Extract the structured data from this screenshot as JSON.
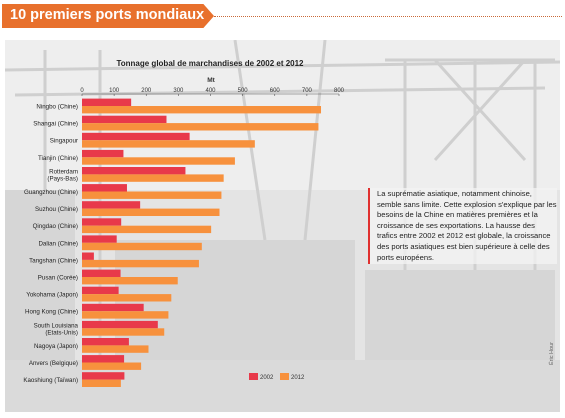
{
  "header": {
    "title": "10 premiers ports mondiaux"
  },
  "chart_data": {
    "type": "bar",
    "orientation": "horizontal",
    "title": "Tonnage global de marchandises de 2002 et 2012",
    "xlabel": "Mt",
    "ylabel": "",
    "xlim": [
      0,
      800
    ],
    "xticks": [
      0,
      100,
      200,
      300,
      400,
      500,
      600,
      700,
      800
    ],
    "categories": [
      "Ningbo (Chine)",
      "Shangai (Chine)",
      "Singapour",
      "Tianjin (Chine)",
      "Rotterdam (Pays-Bas)",
      "Guangzhou (Chine)",
      "Suzhou (Chine)",
      "Qingdao (Chine)",
      "Dalian (Chine)",
      "Tangshan (Chine)",
      "Pusan (Corée)",
      "Yokohama (Japon)",
      "Hong Kong (Chine)",
      "South Louisiana (Etats-Unis)",
      "Nagoya (Japon)",
      "Anvers (Belgique)",
      "Kaoshiung (Taïwan)"
    ],
    "series": [
      {
        "name": "2002",
        "color": "#e8394a",
        "values": [
          153,
          263,
          335,
          129,
          322,
          140,
          181,
          122,
          108,
          37,
          120,
          114,
          192,
          236,
          146,
          131,
          132
        ]
      },
      {
        "name": "2012",
        "color": "#f7913d",
        "values": [
          744,
          736,
          538,
          476,
          441,
          434,
          428,
          402,
          373,
          364,
          298,
          278,
          269,
          256,
          207,
          184,
          121
        ]
      }
    ],
    "legend_position": "bottom-right",
    "grid": false
  },
  "note": {
    "text": "La suprématie asiatique, notamment chinoise, semble sans limite. Cette explosion s'explique par les besoins de la Chine en matières premières et la croissance de ses exportations. La hausse des trafics entre 2002 et 2012 est globale, la croissance des ports asiatiques est bien supérieure à celle des ports européens."
  },
  "credit": "Éric Hour"
}
